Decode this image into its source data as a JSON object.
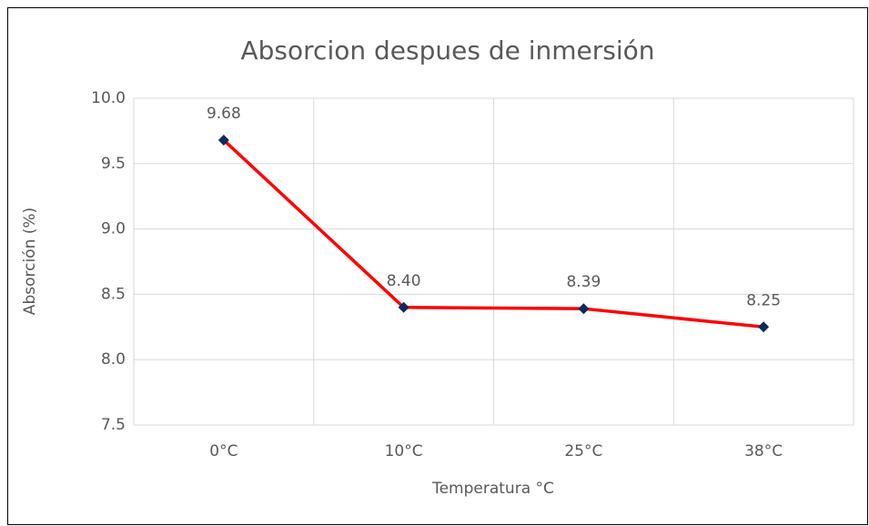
{
  "chart_data": {
    "type": "line",
    "title": "Absorcion despues de inmersión",
    "x_label": "Temperatura  °C",
    "y_label": "Absorción (%)",
    "categories": [
      "0°C",
      "10°C",
      "25°C",
      "38°C"
    ],
    "series": [
      {
        "name": "Absorción",
        "color": "#ff0000",
        "marker_color": "#0d2a5e",
        "values": [
          9.68,
          8.4,
          8.39,
          8.25
        ],
        "value_labels": [
          "9.68",
          "8.40",
          "8.39",
          "8.25"
        ]
      }
    ],
    "ylim": [
      7.5,
      10
    ],
    "yticks": [
      {
        "value": 7.5,
        "label": "7.5"
      },
      {
        "value": 8,
        "label": "8.0"
      },
      {
        "value": 8.5,
        "label": "8.5"
      },
      {
        "value": 9,
        "label": "9.0"
      },
      {
        "value": 9.5,
        "label": "9.5"
      },
      {
        "value": 10,
        "label": "10.0"
      }
    ],
    "grid": true
  }
}
